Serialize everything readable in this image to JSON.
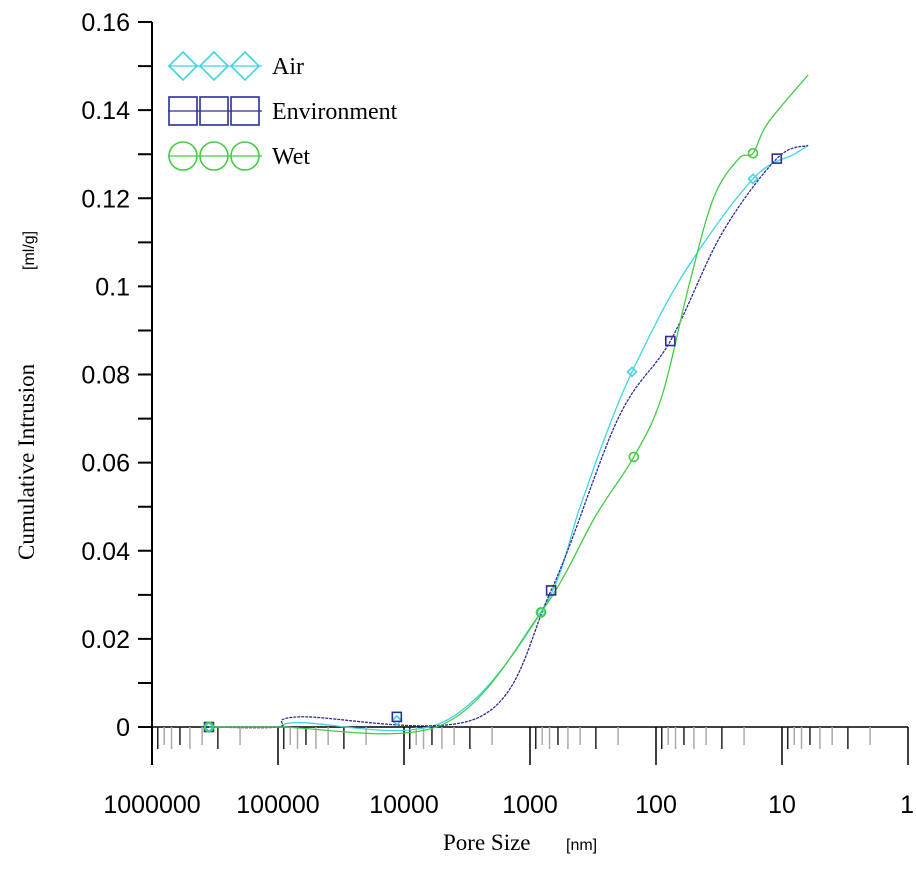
{
  "chart_data": {
    "type": "line",
    "title": "",
    "xlabel": "Pore Size",
    "xunit": "[nm]",
    "ylabel": "Cumulative Intrusion",
    "yunit": "[ml/g]",
    "xscale": "log-reversed",
    "xlim": [
      1000000,
      1
    ],
    "ylim": [
      0,
      0.16
    ],
    "xticks": [
      "1000000",
      "100000",
      "10000",
      "1000",
      "100",
      "10",
      "1"
    ],
    "xtick_values": [
      1000000,
      100000,
      10000,
      1000,
      100,
      10,
      1
    ],
    "yticks": [
      "0",
      "0.02",
      "0.04",
      "0.06",
      "0.08",
      "0.1",
      "0.12",
      "0.14",
      "0.16"
    ],
    "ytick_values": [
      0,
      0.02,
      0.04,
      0.06,
      0.08,
      0.1,
      0.12,
      0.14,
      0.16
    ],
    "legend_position": "top-left",
    "grid": false,
    "series": [
      {
        "name": "Air",
        "marker": "diamond",
        "color": "#3fd6e0",
        "line": [
          [
            353000,
            0
          ],
          [
            100000,
            0
          ],
          [
            68000,
            0.001
          ],
          [
            5000,
            0.001
          ],
          [
            818,
            0.026
          ],
          [
            400,
            0.05
          ],
          [
            260,
            0.065
          ],
          [
            155,
            0.0806
          ],
          [
            60,
            0.103
          ],
          [
            17,
            0.1244
          ],
          [
            8,
            0.13
          ],
          [
            6.2,
            0.132
          ]
        ],
        "points": [
          [
            353000,
            0
          ],
          [
            11400,
            0.0015
          ],
          [
            818,
            0.026
          ],
          [
            155,
            0.0806
          ],
          [
            17,
            0.1244
          ]
        ]
      },
      {
        "name": "Environment",
        "marker": "square",
        "color": "#2b2f9a",
        "line": [
          [
            353000,
            0
          ],
          [
            100000,
            0
          ],
          [
            68000,
            0.0023
          ],
          [
            2500,
            0.0023
          ],
          [
            680,
            0.031
          ],
          [
            200,
            0.07
          ],
          [
            77,
            0.0876
          ],
          [
            30,
            0.112
          ],
          [
            11,
            0.129
          ],
          [
            6.2,
            0.132
          ]
        ],
        "points": [
          [
            353000,
            0
          ],
          [
            11400,
            0.0023
          ],
          [
            680,
            0.031
          ],
          [
            77,
            0.0876
          ],
          [
            11,
            0.129
          ]
        ]
      },
      {
        "name": "Wet",
        "marker": "circle",
        "color": "#44cc44",
        "line": [
          [
            353000,
            0
          ],
          [
            100000,
            0
          ],
          [
            5000,
            0.0005
          ],
          [
            818,
            0.026
          ],
          [
            300,
            0.048
          ],
          [
            150,
            0.0613
          ],
          [
            90,
            0.075
          ],
          [
            55,
            0.1
          ],
          [
            35,
            0.12
          ],
          [
            22,
            0.129
          ],
          [
            17,
            0.1302
          ],
          [
            13,
            0.137
          ],
          [
            6.2,
            0.148
          ]
        ],
        "points": [
          [
            353000,
            0
          ],
          [
            818,
            0.026
          ],
          [
            150,
            0.0613
          ],
          [
            17,
            0.1302
          ]
        ]
      }
    ]
  }
}
